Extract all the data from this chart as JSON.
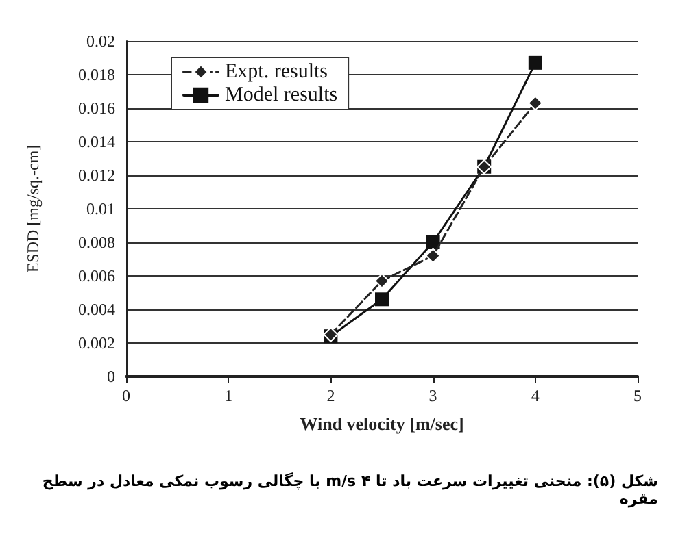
{
  "chart_data": {
    "type": "line",
    "xlabel": "Wind velocity [m/sec]",
    "ylabel": "ESDD [mg/sq.-cm]",
    "annotations": [
      "شکل (۵): منحنی تغییرات سرعت باد تا ۴ m/s با چگالی رسوب نمکی معادل در سطح مقره"
    ],
    "x": [
      2,
      2.5,
      3,
      3.5,
      4
    ],
    "series": [
      {
        "name": "Expt. results",
        "color": "#222222",
        "values": [
          0.0025,
          0.0057,
          0.0072,
          0.0125,
          0.0163
        ],
        "marker": "diamond",
        "line_style": "dashed"
      },
      {
        "name": "Model results",
        "color": "#111111",
        "values": [
          0.0024,
          0.0046,
          0.008,
          0.0125,
          0.0187
        ],
        "marker": "square",
        "line_style": "solid"
      }
    ],
    "xlim": [
      0,
      5
    ],
    "xticks": [
      0,
      1,
      2,
      3,
      4,
      5
    ],
    "ylim": [
      0,
      0.02
    ],
    "yticks": [
      0,
      0.002,
      0.004,
      0.006,
      0.008,
      0.01,
      0.012,
      0.014,
      0.016,
      0.018,
      0.02
    ],
    "grid": "y",
    "legend": "top left"
  }
}
